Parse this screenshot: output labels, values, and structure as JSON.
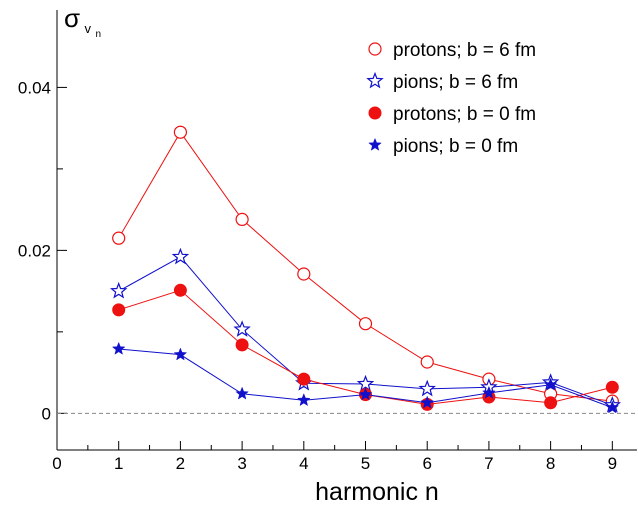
{
  "chart_data": {
    "type": "line",
    "xlabel": "harmonic n",
    "ylabel": {
      "symbol": "σ",
      "sub": "v",
      "subsub": "n"
    },
    "xlim": [
      0,
      9.4
    ],
    "ylim": [
      -0.0045,
      0.0495
    ],
    "x_ticks": [
      0,
      1,
      2,
      3,
      4,
      5,
      6,
      7,
      8,
      9
    ],
    "y_ticks": [
      {
        "value": 0,
        "label": "0"
      },
      {
        "value": 0.02,
        "label": "0.02"
      },
      {
        "value": 0.04,
        "label": "0.04"
      }
    ],
    "reference_line": {
      "y": 0,
      "style": "dashed"
    },
    "legend_placement": "top-right",
    "x": [
      1,
      2,
      3,
      4,
      5,
      6,
      7,
      8,
      9
    ],
    "series": [
      {
        "name": "protons; b = 6 fm",
        "color": "#ee1111",
        "marker": "open-circle",
        "values": [
          0.0215,
          0.0345,
          0.0238,
          0.0171,
          0.011,
          0.0063,
          0.0042,
          0.0024,
          0.0015
        ]
      },
      {
        "name": "pions; b = 6 fm",
        "color": "#1111cc",
        "marker": "open-star",
        "values": [
          0.015,
          0.0192,
          0.0103,
          0.0037,
          0.0036,
          0.003,
          0.0032,
          0.0038,
          0.001
        ]
      },
      {
        "name": "protons; b = 0 fm",
        "color": "#ee1111",
        "marker": "filled-circle",
        "values": [
          0.0127,
          0.0151,
          0.0084,
          0.0042,
          0.0023,
          0.0011,
          0.002,
          0.0013,
          0.0032
        ]
      },
      {
        "name": "pions; b = 0 fm",
        "color": "#1111cc",
        "marker": "filled-star",
        "values": [
          0.0079,
          0.0072,
          0.0024,
          0.0016,
          0.0023,
          0.0013,
          0.0025,
          0.0035,
          0.0007
        ]
      }
    ]
  }
}
